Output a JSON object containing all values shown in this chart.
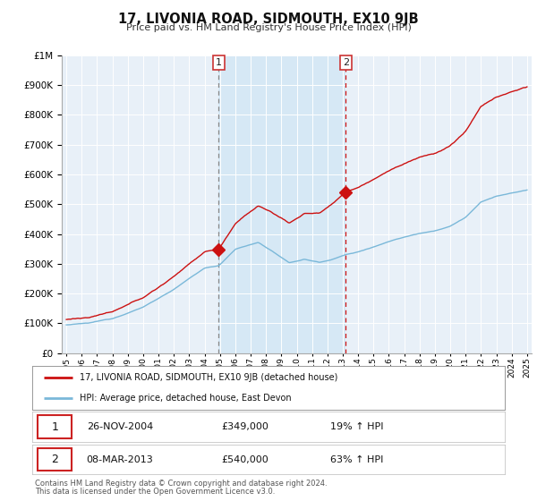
{
  "title": "17, LIVONIA ROAD, SIDMOUTH, EX10 9JB",
  "subtitle": "Price paid vs. HM Land Registry's House Price Index (HPI)",
  "hpi_color": "#7ab8d9",
  "price_color": "#cc1111",
  "sale1_date": "26-NOV-2004",
  "sale1_price": 349000,
  "sale1_hpi_pct": "19%",
  "sale1_year": 2004.92,
  "sale2_date": "08-MAR-2013",
  "sale2_price": 540000,
  "sale2_hpi_pct": "63%",
  "sale2_year": 2013.19,
  "legend_line1": "17, LIVONIA ROAD, SIDMOUTH, EX10 9JB (detached house)",
  "legend_line2": "HPI: Average price, detached house, East Devon",
  "footer1": "Contains HM Land Registry data © Crown copyright and database right 2024.",
  "footer2": "This data is licensed under the Open Government Licence v3.0.",
  "ylim_max": 1000000,
  "ylim_min": 0,
  "start_year": 1995,
  "end_year": 2025,
  "background_color": "#ffffff",
  "plot_bg_color": "#e8f0f8",
  "shade_color": "#d6e8f5"
}
